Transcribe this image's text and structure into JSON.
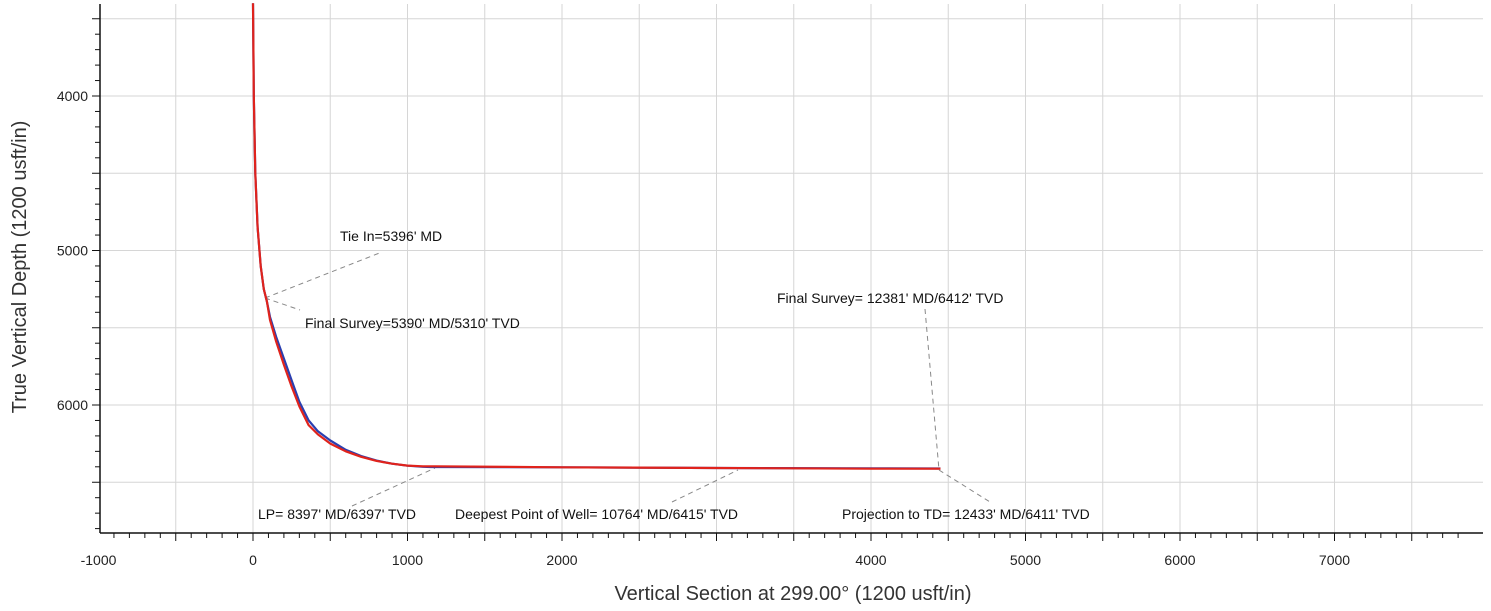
{
  "chart_data": {
    "type": "line",
    "title": "",
    "xlabel": "Vertical Section at 299.00° (1200 usft/in)",
    "ylabel": "True Vertical Depth (1200 usft/in)",
    "xlim": [
      -1000,
      7800
    ],
    "ylim": [
      3400,
      6810
    ],
    "y_inverted": true,
    "grid": true,
    "x_ticks": [
      -1000,
      0,
      1000,
      2000,
      4000,
      5000,
      6000,
      7000
    ],
    "y_ticks": [
      4000,
      5000,
      6000
    ],
    "colors": {
      "plan": "#2a3fb0",
      "actual": "#e0231c",
      "grid": "#d6d6d6",
      "leader": "#888888"
    },
    "series": [
      {
        "key": "plan",
        "x": [
          0,
          5,
          15,
          30,
          50,
          70,
          90,
          110,
          150,
          200,
          250,
          300,
          360,
          420,
          500,
          600,
          700,
          800,
          900,
          1000,
          1100,
          1150,
          2000,
          3000,
          4000,
          4450
        ],
        "y": [
          3400,
          4000,
          4500,
          4850,
          5100,
          5250,
          5330,
          5430,
          5560,
          5700,
          5840,
          5980,
          6100,
          6170,
          6230,
          6290,
          6330,
          6360,
          6380,
          6393,
          6400,
          6401,
          6403,
          6408,
          6410,
          6411
        ]
      },
      {
        "key": "actual",
        "x": [
          0,
          5,
          15,
          30,
          50,
          70,
          90,
          110,
          150,
          200,
          250,
          300,
          360,
          420,
          500,
          600,
          700,
          800,
          900,
          1000,
          1100,
          1180,
          2000,
          3000,
          4000,
          4450
        ],
        "y": [
          3400,
          4000,
          4500,
          4850,
          5100,
          5250,
          5330,
          5450,
          5590,
          5740,
          5880,
          6010,
          6130,
          6190,
          6250,
          6300,
          6335,
          6362,
          6380,
          6392,
          6397,
          6397,
          6403,
          6408,
          6412,
          6412
        ]
      }
    ],
    "annotations": [
      {
        "text": "Tie In=5396' MD",
        "x": 100,
        "y": 5300,
        "anchor": "start"
      },
      {
        "text": "Final Survey=5390' MD/5310' TVD",
        "x": 100,
        "y": 5300,
        "anchor": "start"
      },
      {
        "text": "Final Survey= 12381' MD/6412' TVD",
        "x": 4440,
        "y": 6412,
        "anchor": "middle"
      },
      {
        "text": "LP= 8397' MD/6397' TVD",
        "x": 1180,
        "y": 6397,
        "anchor": "middle"
      },
      {
        "text": "Deepest Point of Well= 10764' MD/6415' TVD",
        "x": 3150,
        "y": 6405,
        "anchor": "middle"
      },
      {
        "text": "Projection to TD= 12433' MD/6411' TVD",
        "x": 4440,
        "y": 6412,
        "anchor": "start"
      }
    ]
  }
}
